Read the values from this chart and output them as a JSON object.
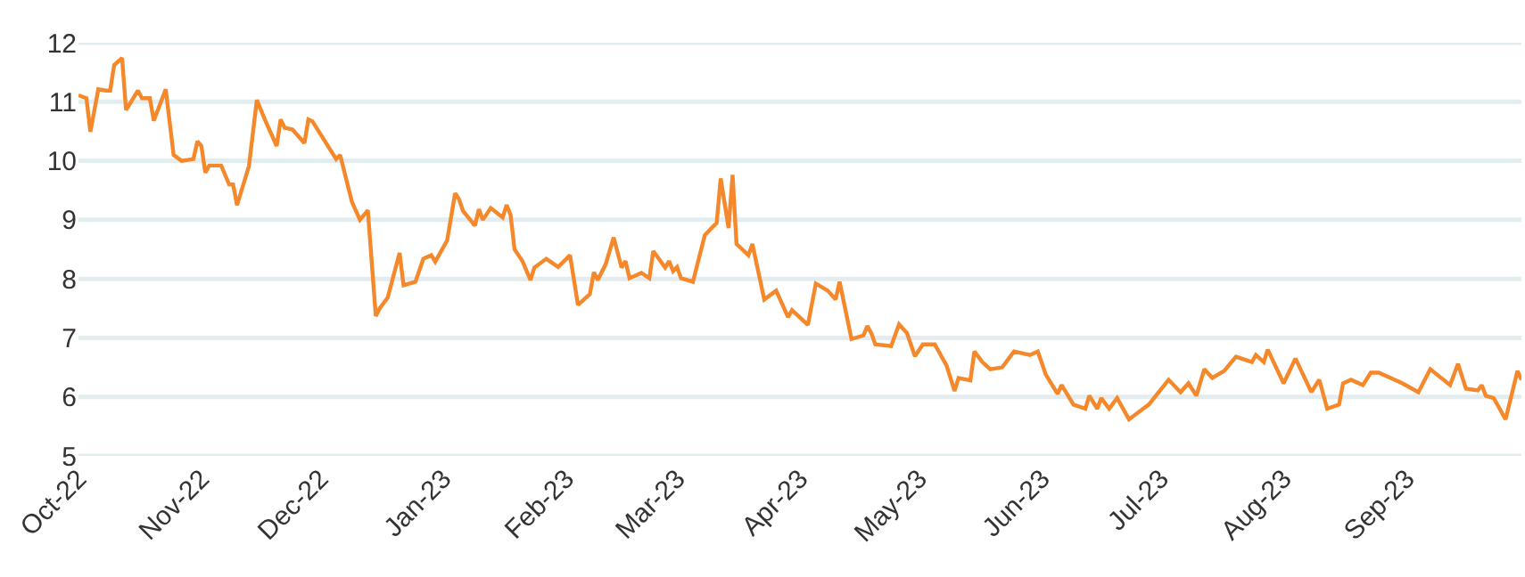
{
  "chart_data": {
    "type": "line",
    "x": [
      "2022-10-01",
      "2022-10-03",
      "2022-10-04",
      "2022-10-06",
      "2022-10-08",
      "2022-10-09",
      "2022-10-10",
      "2022-10-12",
      "2022-10-13",
      "2022-10-16",
      "2022-10-17",
      "2022-10-19",
      "2022-10-20",
      "2022-10-23",
      "2022-10-25",
      "2022-10-27",
      "2022-10-30",
      "2022-10-31",
      "2022-11-01",
      "2022-11-02",
      "2022-11-03",
      "2022-11-06",
      "2022-11-08",
      "2022-11-09",
      "2022-11-10",
      "2022-11-13",
      "2022-11-15",
      "2022-11-17",
      "2022-11-20",
      "2022-11-21",
      "2022-11-22",
      "2022-11-24",
      "2022-11-27",
      "2022-11-28",
      "2022-11-29",
      "2022-12-05",
      "2022-12-06",
      "2022-12-09",
      "2022-12-11",
      "2022-12-13",
      "2022-12-15",
      "2022-12-16",
      "2022-12-18",
      "2022-12-21",
      "2022-12-22",
      "2022-12-25",
      "2022-12-27",
      "2022-12-29",
      "2022-12-30",
      "2023-01-02",
      "2023-01-04",
      "2023-01-05",
      "2023-01-06",
      "2023-01-09",
      "2023-01-10",
      "2023-01-11",
      "2023-01-13",
      "2023-01-16",
      "2023-01-17",
      "2023-01-18",
      "2023-01-19",
      "2023-01-21",
      "2023-01-23",
      "2023-01-24",
      "2023-01-27",
      "2023-01-30",
      "2023-02-02",
      "2023-02-04",
      "2023-02-07",
      "2023-02-08",
      "2023-02-09",
      "2023-02-11",
      "2023-02-13",
      "2023-02-15",
      "2023-02-16",
      "2023-02-17",
      "2023-02-20",
      "2023-02-22",
      "2023-02-23",
      "2023-02-26",
      "2023-02-27",
      "2023-02-28",
      "2023-03-01",
      "2023-03-02",
      "2023-03-05",
      "2023-03-08",
      "2023-03-11",
      "2023-03-12",
      "2023-03-14",
      "2023-03-15",
      "2023-03-16",
      "2023-03-19",
      "2023-03-20",
      "2023-03-23",
      "2023-03-26",
      "2023-03-29",
      "2023-03-30",
      "2023-04-03",
      "2023-04-05",
      "2023-04-08",
      "2023-04-10",
      "2023-04-11",
      "2023-04-14",
      "2023-04-17",
      "2023-04-18",
      "2023-04-19",
      "2023-04-20",
      "2023-04-24",
      "2023-04-26",
      "2023-04-28",
      "2023-04-30",
      "2023-05-02",
      "2023-05-05",
      "2023-05-08",
      "2023-05-10",
      "2023-05-11",
      "2023-05-14",
      "2023-05-15",
      "2023-05-17",
      "2023-05-19",
      "2023-05-22",
      "2023-05-25",
      "2023-05-29",
      "2023-05-31",
      "2023-06-02",
      "2023-06-05",
      "2023-06-06",
      "2023-06-09",
      "2023-06-12",
      "2023-06-13",
      "2023-06-15",
      "2023-06-16",
      "2023-06-18",
      "2023-06-20",
      "2023-06-23",
      "2023-06-28",
      "2023-07-03",
      "2023-07-06",
      "2023-07-08",
      "2023-07-10",
      "2023-07-12",
      "2023-07-14",
      "2023-07-17",
      "2023-07-20",
      "2023-07-24",
      "2023-07-25",
      "2023-07-27",
      "2023-07-28",
      "2023-08-01",
      "2023-08-04",
      "2023-08-08",
      "2023-08-10",
      "2023-08-12",
      "2023-08-15",
      "2023-08-16",
      "2023-08-18",
      "2023-08-21",
      "2023-08-23",
      "2023-08-25",
      "2023-08-31",
      "2023-09-04",
      "2023-09-07",
      "2023-09-12",
      "2023-09-14",
      "2023-09-16",
      "2023-09-19",
      "2023-09-20",
      "2023-09-21",
      "2023-09-23",
      "2023-09-26",
      "2023-09-29",
      "2023-09-30"
    ],
    "series": [
      {
        "color": "#f5882a",
        "values": [
          11.11,
          11.06,
          10.49,
          11.21,
          11.19,
          11.19,
          11.62,
          11.74,
          10.86,
          11.19,
          11.06,
          11.06,
          10.68,
          11.21,
          10.1,
          10.0,
          10.03,
          10.33,
          10.25,
          9.8,
          9.92,
          9.92,
          9.6,
          9.6,
          9.25,
          9.91,
          11.03,
          10.7,
          10.25,
          10.7,
          10.56,
          10.53,
          10.3,
          10.7,
          10.67,
          10.03,
          10.1,
          9.3,
          9.0,
          9.16,
          7.37,
          7.5,
          7.68,
          8.44,
          7.89,
          7.95,
          8.34,
          8.4,
          8.29,
          8.65,
          9.45,
          9.35,
          9.15,
          8.9,
          9.18,
          9.0,
          9.2,
          9.04,
          9.25,
          9.08,
          8.5,
          8.3,
          7.98,
          8.19,
          8.34,
          8.2,
          8.4,
          7.56,
          7.74,
          8.11,
          7.98,
          8.25,
          8.7,
          8.19,
          8.3,
          8.01,
          8.1,
          8.01,
          8.47,
          8.19,
          8.3,
          8.13,
          8.2,
          8.01,
          7.95,
          8.74,
          8.95,
          9.7,
          8.86,
          9.76,
          8.59,
          8.4,
          8.59,
          7.65,
          7.8,
          7.35,
          7.47,
          7.22,
          7.92,
          7.8,
          7.65,
          7.95,
          6.98,
          7.04,
          7.2,
          7.08,
          6.89,
          6.86,
          7.23,
          7.08,
          6.69,
          6.89,
          6.89,
          6.53,
          6.1,
          6.32,
          6.28,
          6.77,
          6.59,
          6.47,
          6.5,
          6.77,
          6.71,
          6.77,
          6.38,
          6.05,
          6.2,
          5.87,
          5.8,
          6.02,
          5.8,
          5.98,
          5.8,
          5.98,
          5.62,
          5.87,
          6.29,
          6.08,
          6.23,
          6.02,
          6.47,
          6.32,
          6.44,
          6.68,
          6.59,
          6.71,
          6.59,
          6.8,
          6.23,
          6.65,
          6.08,
          6.29,
          5.8,
          5.87,
          6.23,
          6.29,
          6.2,
          6.41,
          6.41,
          6.23,
          6.08,
          6.47,
          6.2,
          6.56,
          6.14,
          6.11,
          6.2,
          6.02,
          5.98,
          5.62,
          6.44,
          6.29
        ]
      }
    ],
    "xlim": [
      "2022-10-01",
      "2023-09-30"
    ],
    "xticks": [
      {
        "value": "2022-10-01",
        "label": "Oct-22"
      },
      {
        "value": "2022-11-01",
        "label": "Nov-22"
      },
      {
        "value": "2022-12-01",
        "label": "Dec-22"
      },
      {
        "value": "2023-01-01",
        "label": "Jan-23"
      },
      {
        "value": "2023-02-01",
        "label": "Feb-23"
      },
      {
        "value": "2023-03-01",
        "label": "Mar-23"
      },
      {
        "value": "2023-04-01",
        "label": "Apr-23"
      },
      {
        "value": "2023-05-01",
        "label": "May-23"
      },
      {
        "value": "2023-06-01",
        "label": "Jun-23"
      },
      {
        "value": "2023-07-01",
        "label": "Jul-23"
      },
      {
        "value": "2023-08-01",
        "label": "Aug-23"
      },
      {
        "value": "2023-09-01",
        "label": "Sep-23"
      }
    ],
    "ylim": [
      5,
      12
    ],
    "yticks": [
      5,
      6,
      7,
      8,
      9,
      10,
      11,
      12
    ],
    "grid": "y",
    "marker": "none",
    "line_style": "solid"
  }
}
